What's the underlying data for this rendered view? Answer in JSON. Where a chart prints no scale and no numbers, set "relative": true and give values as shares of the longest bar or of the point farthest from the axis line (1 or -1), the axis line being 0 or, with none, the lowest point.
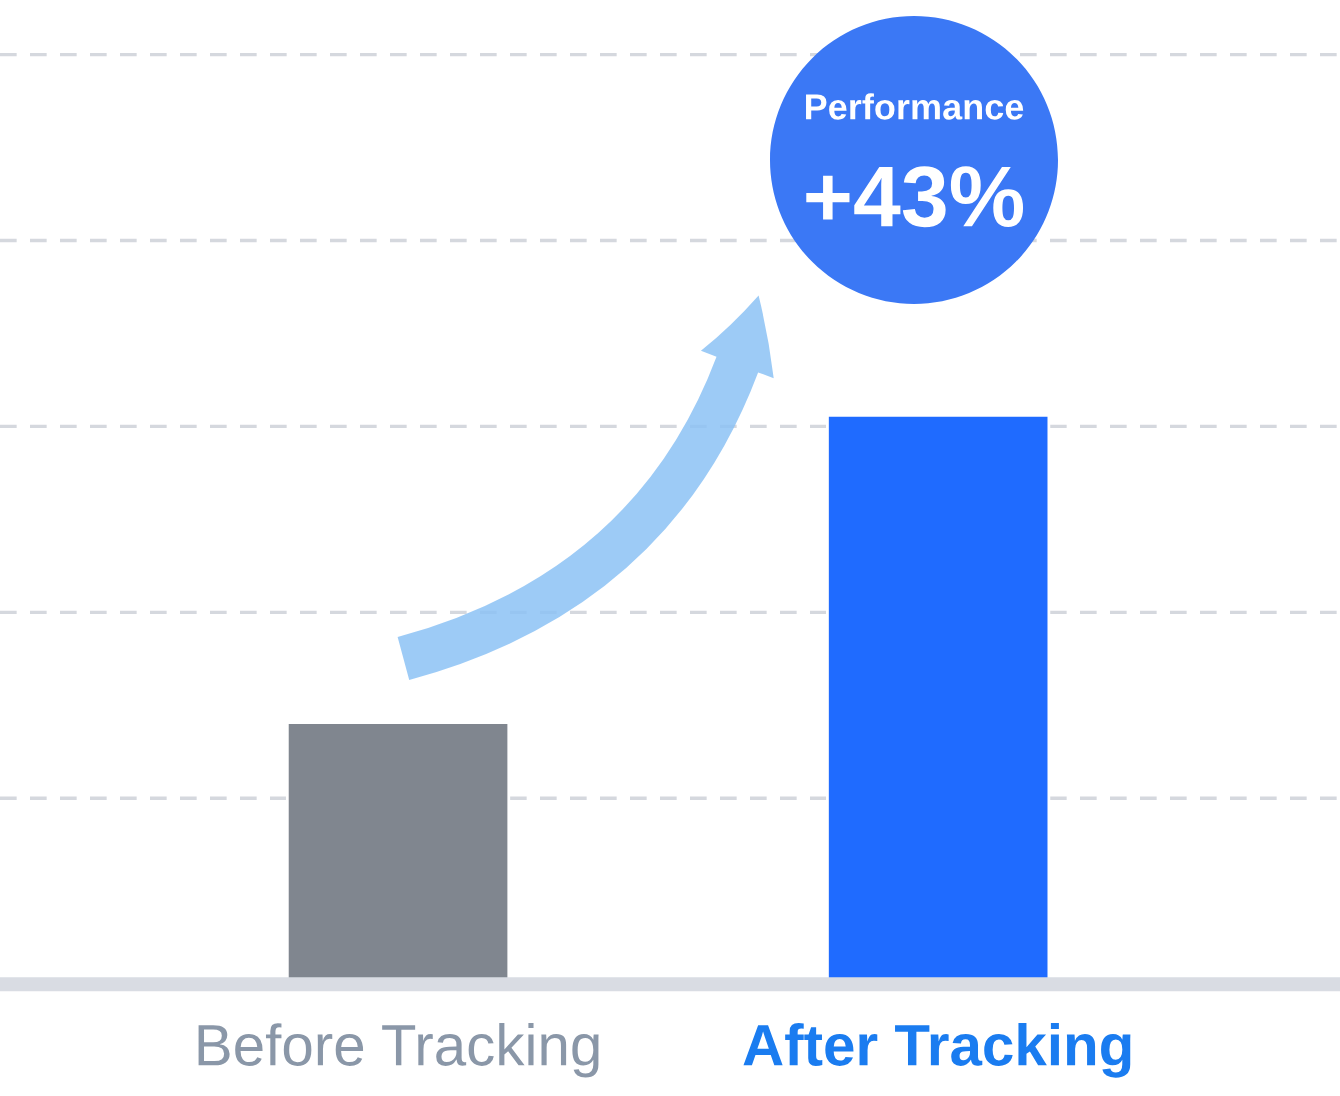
{
  "chart_data": {
    "type": "bar",
    "relative": true,
    "categories": [
      "Before Tracking",
      "After Tracking"
    ],
    "values": [
      0.46,
      1
    ],
    "colors": [
      "#80868f",
      "#1f6bff"
    ],
    "grid": "y",
    "annotations": [
      "Performance",
      "+43%"
    ]
  }
}
